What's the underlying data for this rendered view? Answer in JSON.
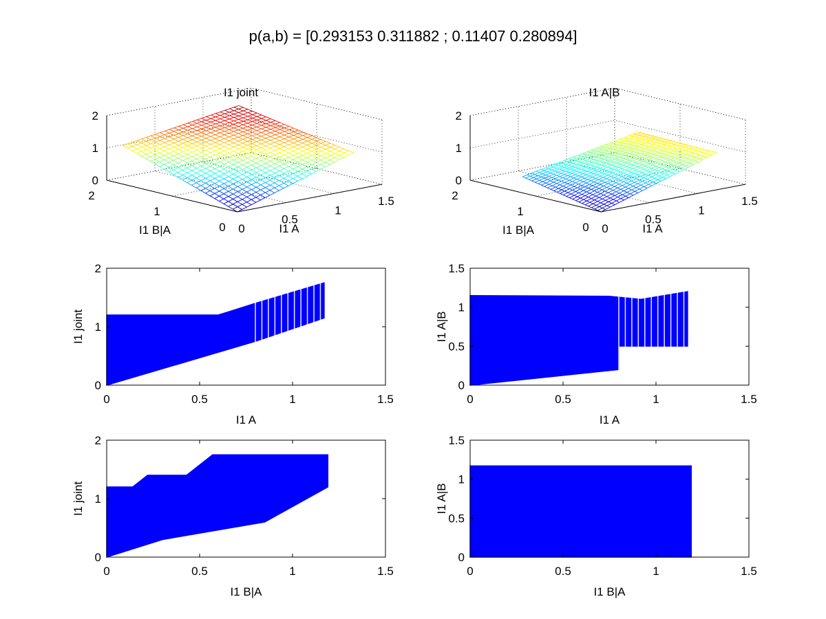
{
  "figure": {
    "title": "p(a,b) = [0.293153 0.311882 ; 0.11407 0.280894]"
  },
  "chart_data": [
    {
      "id": "panel-1",
      "type": "surface",
      "title": "I1 joint",
      "xlabel": "I1 A",
      "ylabel": "I1 B|A",
      "zlabel": "",
      "x_ticks": [
        "0",
        "0.5",
        "1",
        "1.5"
      ],
      "y_ticks": [
        "0",
        "1",
        "2"
      ],
      "z_ticks": [
        "0",
        "1",
        "2"
      ],
      "xlim": [
        0,
        1.5
      ],
      "ylim": [
        0,
        2
      ],
      "zlim": [
        0,
        2
      ],
      "grid": true,
      "colormap": "jet",
      "surface_ranges": {
        "x": [
          0,
          1.2
        ],
        "y": [
          0,
          1.75
        ],
        "z": [
          0,
          1.75
        ]
      },
      "z_corners": {
        "x0_y0": 0.0,
        "x1_y0": 1.15,
        "x0_y1": 1.2,
        "x1_y1": 1.75
      }
    },
    {
      "id": "panel-2",
      "type": "surface",
      "title": "I1 A|B",
      "xlabel": "I1 A",
      "ylabel": "I1 B|A",
      "zlabel": "",
      "x_ticks": [
        "0",
        "0.5",
        "1",
        "1.5"
      ],
      "y_ticks": [
        "0",
        "1",
        "2"
      ],
      "z_ticks": [
        "0",
        "1",
        "2"
      ],
      "xlim": [
        0,
        1.5
      ],
      "ylim": [
        0,
        2
      ],
      "zlim": [
        0,
        2
      ],
      "grid": true,
      "colormap": "jet",
      "surface_ranges": {
        "x": [
          0,
          1.2
        ],
        "y": [
          0,
          1.2
        ],
        "z": [
          0,
          1.2
        ]
      },
      "z_corners": {
        "x0_y0": 0.0,
        "x1_y0": 1.15,
        "x0_y1": 0.5,
        "x1_y1": 1.2
      }
    },
    {
      "id": "panel-3",
      "type": "scatter",
      "title": "",
      "xlabel": "I1 A",
      "ylabel": "I1 joint",
      "xlim": [
        0,
        1.5
      ],
      "ylim": [
        0,
        2
      ],
      "x_ticks": [
        "0",
        "0.5",
        "1",
        "1.5"
      ],
      "y_ticks": [
        "0",
        "1",
        "2"
      ],
      "color": "#0000ff",
      "region": {
        "upper": [
          [
            0,
            1.2
          ],
          [
            0.6,
            1.2
          ],
          [
            0.65,
            1.25
          ],
          [
            0.8,
            1.4
          ],
          [
            1.17,
            1.75
          ]
        ],
        "lower": [
          [
            0,
            0
          ],
          [
            0.8,
            0.75
          ],
          [
            1.17,
            1.15
          ]
        ]
      }
    },
    {
      "id": "panel-4",
      "type": "scatter",
      "title": "",
      "xlabel": "I1 A",
      "ylabel": "I1 A|B",
      "xlim": [
        0,
        1.5
      ],
      "ylim": [
        0,
        1.5
      ],
      "x_ticks": [
        "0",
        "0.5",
        "1",
        "1.5"
      ],
      "y_ticks": [
        "0",
        "0.5",
        "1",
        "1.5"
      ],
      "color": "#0000ff",
      "region": {
        "upper": [
          [
            0,
            1.15
          ],
          [
            0.75,
            1.14
          ],
          [
            0.92,
            1.1
          ],
          [
            1.17,
            1.2
          ]
        ],
        "lower": [
          [
            0,
            0
          ],
          [
            0.8,
            0.2
          ],
          [
            0.8,
            0.5
          ],
          [
            1.0,
            0.5
          ],
          [
            1.17,
            0.5
          ]
        ]
      }
    },
    {
      "id": "panel-5",
      "type": "scatter",
      "title": "",
      "xlabel": "I1 B|A",
      "ylabel": "I1 joint",
      "xlim": [
        0,
        1.5
      ],
      "ylim": [
        0,
        2
      ],
      "x_ticks": [
        "0",
        "0.5",
        "1",
        "1.5"
      ],
      "y_ticks": [
        "0",
        "1",
        "2"
      ],
      "color": "#0000ff",
      "region": {
        "upper": [
          [
            0,
            1.2
          ],
          [
            0.14,
            1.2
          ],
          [
            0.22,
            1.4
          ],
          [
            0.43,
            1.4
          ],
          [
            0.57,
            1.75
          ],
          [
            1.19,
            1.75
          ]
        ],
        "lower": [
          [
            0,
            0
          ],
          [
            0.3,
            0.3
          ],
          [
            0.85,
            0.6
          ],
          [
            1.19,
            1.2
          ]
        ]
      }
    },
    {
      "id": "panel-6",
      "type": "scatter",
      "title": "",
      "xlabel": "I1 B|A",
      "ylabel": "I1 A|B",
      "xlim": [
        0,
        1.5
      ],
      "ylim": [
        0,
        1.5
      ],
      "x_ticks": [
        "0",
        "0.5",
        "1",
        "1.5"
      ],
      "y_ticks": [
        "0",
        "0.5",
        "1",
        "1.5"
      ],
      "color": "#0000ff",
      "region": {
        "upper": [
          [
            0,
            1.17
          ],
          [
            1.19,
            1.17
          ]
        ],
        "lower": [
          [
            0,
            0
          ],
          [
            1.19,
            0
          ]
        ]
      }
    }
  ]
}
